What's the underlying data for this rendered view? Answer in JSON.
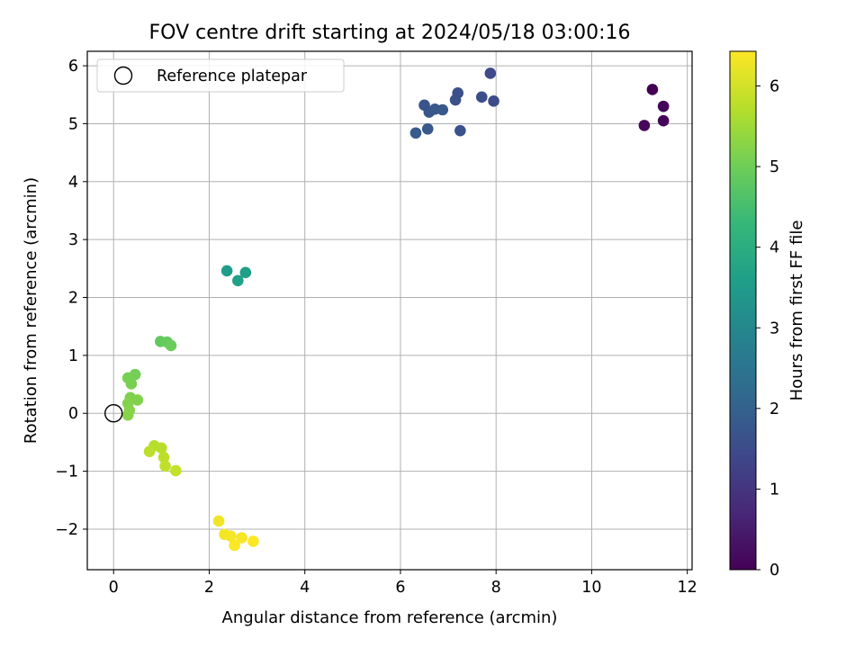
{
  "chart_data": {
    "type": "scatter",
    "title": "FOV centre drift starting at 2024/05/18 03:00:16",
    "xlabel": "Angular distance from reference (arcmin)",
    "ylabel": "Rotation from reference (arcmin)",
    "xlim": [
      -0.55,
      12.1
    ],
    "ylim": [
      -2.7,
      6.25
    ],
    "xticks": [
      0,
      2,
      4,
      6,
      8,
      10,
      12
    ],
    "yticks": [
      -2,
      -1,
      0,
      1,
      2,
      3,
      4,
      5,
      6
    ],
    "xtick_labels": [
      "0",
      "2",
      "4",
      "6",
      "8",
      "10",
      "12"
    ],
    "ytick_labels": [
      "−2",
      "−1",
      "0",
      "1",
      "2",
      "3",
      "4",
      "5",
      "6"
    ],
    "grid": true,
    "legend": {
      "position": "top-left",
      "entries": [
        "Reference platepar"
      ]
    },
    "reference_point": {
      "x": 0,
      "y": 0,
      "label": "Reference platepar"
    },
    "colorbar": {
      "label": "Hours from first FF file",
      "min": 0,
      "max": 6.43,
      "ticks": [
        0,
        1,
        2,
        3,
        4,
        5,
        6
      ],
      "tick_labels": [
        "0",
        "1",
        "2",
        "3",
        "4",
        "5",
        "6"
      ],
      "colormap": "viridis",
      "stops": [
        "#440154",
        "#482878",
        "#3e4989",
        "#31688e",
        "#26828e",
        "#1f9e89",
        "#35b779",
        "#6ece58",
        "#b5de2b",
        "#fde725"
      ]
    },
    "points": [
      {
        "x": 11.27,
        "y": 5.59,
        "hours": 0.0
      },
      {
        "x": 11.5,
        "y": 5.3,
        "hours": 0.05
      },
      {
        "x": 11.5,
        "y": 5.05,
        "hours": 0.08
      },
      {
        "x": 11.1,
        "y": 4.97,
        "hours": 0.12
      },
      {
        "x": 7.88,
        "y": 5.87,
        "hours": 1.45
      },
      {
        "x": 7.95,
        "y": 5.39,
        "hours": 1.5
      },
      {
        "x": 7.7,
        "y": 5.46,
        "hours": 1.55
      },
      {
        "x": 7.2,
        "y": 5.53,
        "hours": 1.6
      },
      {
        "x": 7.15,
        "y": 5.41,
        "hours": 1.62
      },
      {
        "x": 7.25,
        "y": 4.88,
        "hours": 1.65
      },
      {
        "x": 6.5,
        "y": 5.32,
        "hours": 1.7
      },
      {
        "x": 6.6,
        "y": 5.2,
        "hours": 1.72
      },
      {
        "x": 6.72,
        "y": 5.25,
        "hours": 1.75
      },
      {
        "x": 6.88,
        "y": 5.24,
        "hours": 1.78
      },
      {
        "x": 6.57,
        "y": 4.91,
        "hours": 1.8
      },
      {
        "x": 6.32,
        "y": 4.84,
        "hours": 1.85
      },
      {
        "x": 2.37,
        "y": 2.46,
        "hours": 3.55
      },
      {
        "x": 2.76,
        "y": 2.43,
        "hours": 3.6
      },
      {
        "x": 2.6,
        "y": 2.29,
        "hours": 3.65
      },
      {
        "x": 0.98,
        "y": 1.24,
        "hours": 4.85
      },
      {
        "x": 1.12,
        "y": 1.23,
        "hours": 4.9
      },
      {
        "x": 1.2,
        "y": 1.17,
        "hours": 4.95
      },
      {
        "x": 0.45,
        "y": 0.67,
        "hours": 5.05
      },
      {
        "x": 0.3,
        "y": 0.61,
        "hours": 5.08
      },
      {
        "x": 0.37,
        "y": 0.51,
        "hours": 5.1
      },
      {
        "x": 0.35,
        "y": 0.27,
        "hours": 5.15
      },
      {
        "x": 0.5,
        "y": 0.23,
        "hours": 5.18
      },
      {
        "x": 0.3,
        "y": 0.17,
        "hours": 5.2
      },
      {
        "x": 0.33,
        "y": 0.05,
        "hours": 5.22
      },
      {
        "x": 0.3,
        "y": -0.03,
        "hours": 5.25
      },
      {
        "x": 0.85,
        "y": -0.56,
        "hours": 5.72
      },
      {
        "x": 1.0,
        "y": -0.6,
        "hours": 5.75
      },
      {
        "x": 0.75,
        "y": -0.66,
        "hours": 5.78
      },
      {
        "x": 1.05,
        "y": -0.76,
        "hours": 5.8
      },
      {
        "x": 1.08,
        "y": -0.91,
        "hours": 5.82
      },
      {
        "x": 1.3,
        "y": -0.99,
        "hours": 5.85
      },
      {
        "x": 2.2,
        "y": -1.86,
        "hours": 6.3
      },
      {
        "x": 2.32,
        "y": -2.09,
        "hours": 6.33
      },
      {
        "x": 2.45,
        "y": -2.12,
        "hours": 6.35
      },
      {
        "x": 2.68,
        "y": -2.15,
        "hours": 6.37
      },
      {
        "x": 2.53,
        "y": -2.28,
        "hours": 6.4
      },
      {
        "x": 2.92,
        "y": -2.21,
        "hours": 6.43
      }
    ]
  }
}
